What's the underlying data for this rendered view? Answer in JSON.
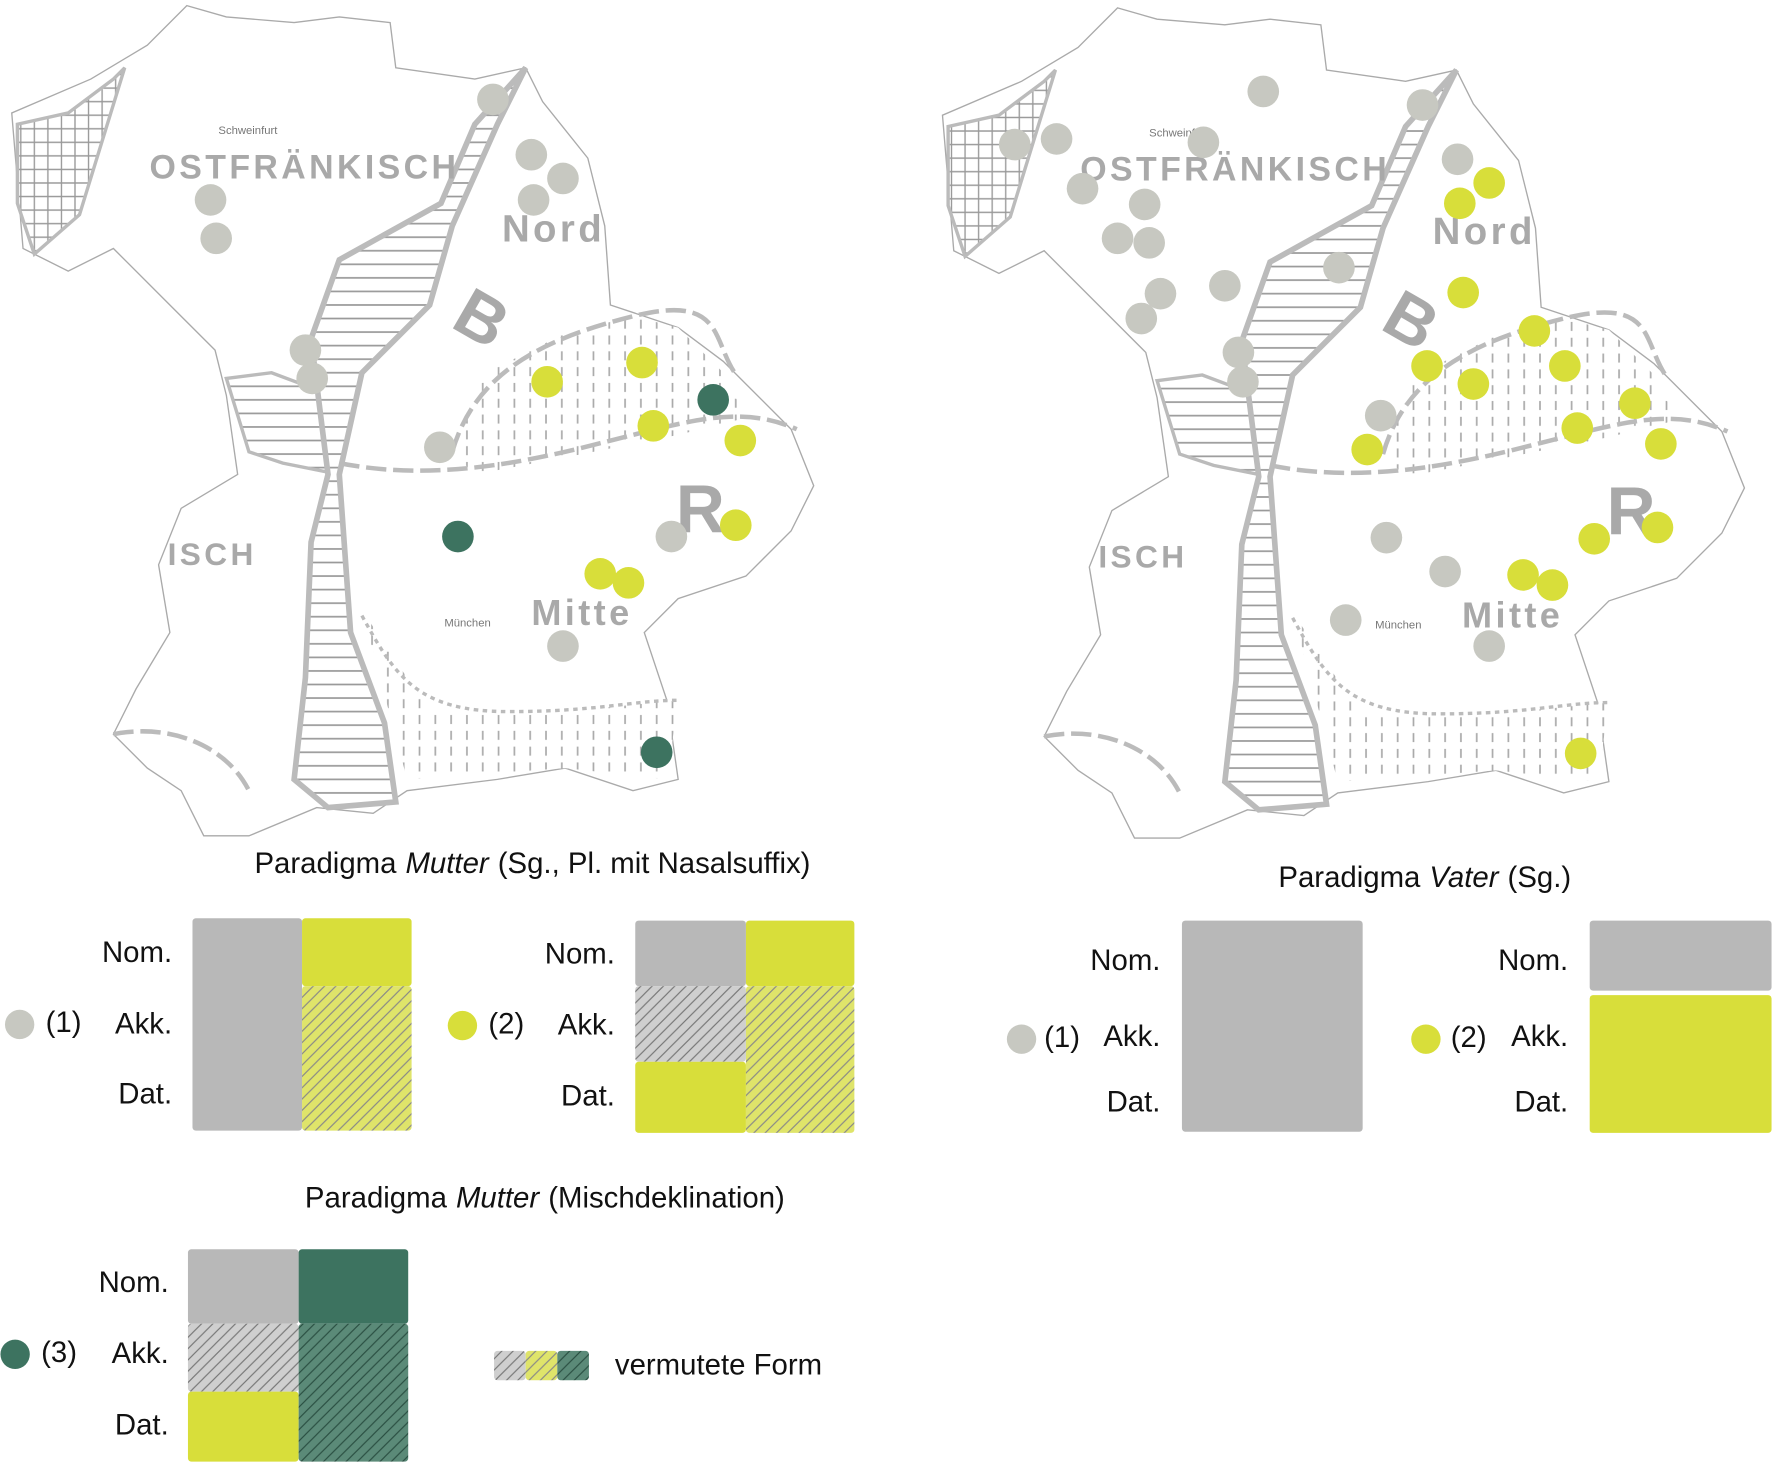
{
  "maps": {
    "labels": {
      "region_east_franconian": "OSTFRÄNKISCH",
      "region_north": "Nord",
      "letter_b": "B",
      "letter_r": "R",
      "region_central": "Mitte",
      "region_west": "ISCH",
      "city_schweinfurt": "Schweinfurt",
      "city_munich": "München"
    }
  },
  "cases": [
    "Nom.",
    "Akk.",
    "Dat."
  ],
  "types": [
    "(1)",
    "(2)",
    "(3)"
  ],
  "paradigm_mutter_nasal": {
    "prefix": "Paradigma",
    "word": "Mutter",
    "suffix": "(Sg., Pl. mit Nasalsuffix)"
  },
  "paradigm_mutter_mixed": {
    "prefix": "Paradigma",
    "word": "Mutter",
    "suffix": "(Mischdeklination)"
  },
  "paradigm_vater": {
    "prefix": "Paradigma",
    "word": "Vater",
    "suffix": "(Sg.)"
  },
  "legend": {
    "presumed_form": "vermutete Form"
  }
}
